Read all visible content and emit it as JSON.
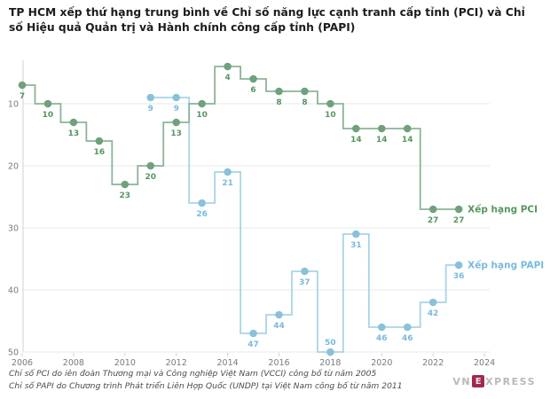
{
  "title": "TP HCM xếp thứ hạng trung bình về Chỉ số năng lực cạnh tranh cấp tỉnh (PCI) và Chỉ số Hiệu quả Quản trị và Hành chính công cấp tỉnh (PAPI)",
  "chart_data": {
    "type": "line",
    "step": "center",
    "inverted_y": true,
    "grid": "horizontal",
    "x_axis": {
      "ticks": [
        2006,
        2008,
        2010,
        2012,
        2014,
        2016,
        2018,
        2020,
        2022,
        2024
      ]
    },
    "y_axis": {
      "ticks": [
        10,
        20,
        30,
        40,
        50
      ],
      "range": [
        3,
        50
      ],
      "direction": "rank (1 = best) increasing downward"
    },
    "series": [
      {
        "name": "Xếp hạng PCI",
        "years": [
          2006,
          2007,
          2008,
          2009,
          2010,
          2011,
          2012,
          2013,
          2014,
          2015,
          2016,
          2017,
          2018,
          2019,
          2020,
          2021,
          2022,
          2023
        ],
        "values": [
          7,
          10,
          13,
          16,
          23,
          20,
          13,
          10,
          4,
          6,
          8,
          8,
          10,
          14,
          14,
          14,
          27,
          27
        ],
        "line_color": "#8cb496",
        "marker_color": "#6fa17c",
        "label_color": "#55965f"
      },
      {
        "name": "Xếp hạng PAPI",
        "years": [
          2011,
          2012,
          2013,
          2014,
          2015,
          2016,
          2017,
          2018,
          2019,
          2020,
          2021,
          2022,
          2023
        ],
        "values": [
          9,
          9,
          26,
          21,
          47,
          44,
          37,
          50,
          31,
          46,
          46,
          42,
          36
        ],
        "line_color": "#a9d4e6",
        "marker_color": "#89c1db",
        "label_color": "#79badb"
      }
    ],
    "legend_position": "inline at end of each line"
  },
  "footer": {
    "notes": [
      "Chỉ số PCI do iên đoàn Thương mại và Công nghiệp Việt Nam (VCCI) công bố từ năm 2005",
      "Chỉ số PAPI do Chương trình Phát triển Liên Hợp Quốc (UNDP) tại Việt Nam công bố từ năm 2011"
    ],
    "logo": {
      "prefix": "VN",
      "e": "E",
      "suffix": "XPRESS"
    }
  },
  "colors": {
    "grid": "#eaeaea",
    "axis_line": "#d2d2d2",
    "tick_text": "#7a7a7a",
    "logo_gray": "#b9b9b9",
    "logo_red": "#9f2b4b"
  }
}
